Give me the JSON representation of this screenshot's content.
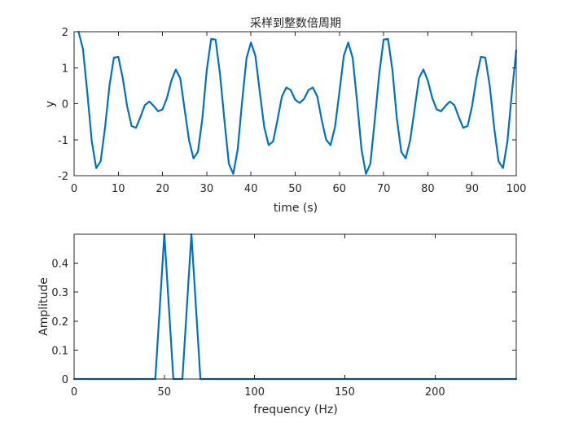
{
  "figure": {
    "background": "#ffffff",
    "axis_color": "#262626"
  },
  "chart_data": [
    {
      "type": "line",
      "title": "采样到整数倍周期",
      "xlabel": "time (s)",
      "ylabel": "y",
      "xlim": [
        0,
        100
      ],
      "ylim": [
        -2,
        2
      ],
      "xticks": [
        0,
        10,
        20,
        30,
        40,
        50,
        60,
        70,
        80,
        90,
        100
      ],
      "yticks": [
        -2,
        -1,
        0,
        1,
        2
      ],
      "grid": false,
      "legend": "none",
      "series": [
        {
          "color": "#0072BD",
          "x": [
            1,
            2,
            3,
            4,
            5,
            6,
            7,
            8,
            9,
            10,
            11,
            12,
            13,
            14,
            15,
            16,
            17,
            18,
            19,
            20,
            21,
            22,
            23,
            24,
            25,
            26,
            27,
            28,
            29,
            30,
            31,
            32,
            33,
            34,
            35,
            36,
            37,
            38,
            39,
            40,
            41,
            42,
            43,
            44,
            45,
            46,
            47,
            48,
            49,
            50,
            51,
            52,
            53,
            54,
            55,
            56,
            57,
            58,
            59,
            60,
            61,
            62,
            63,
            64,
            65,
            66,
            67,
            68,
            69,
            70,
            71,
            72,
            73,
            74,
            75,
            76,
            77,
            78,
            79,
            80,
            81,
            82,
            83,
            84,
            85,
            86,
            87,
            88,
            89,
            90,
            91,
            92,
            93,
            94,
            95,
            96,
            97,
            98,
            99,
            100
          ],
          "y": [
            2.0,
            1.52,
            0.29,
            -1.05,
            -1.79,
            -1.6,
            -0.66,
            0.5,
            1.28,
            1.3,
            0.71,
            -0.07,
            -0.62,
            -0.67,
            -0.37,
            -0.04,
            0.06,
            -0.06,
            -0.21,
            -0.16,
            0.16,
            0.64,
            0.95,
            0.71,
            -0.16,
            -1.02,
            -1.52,
            -1.34,
            -0.42,
            0.93,
            1.8,
            1.78,
            0.82,
            -0.46,
            -1.67,
            -1.95,
            -1.27,
            0.06,
            1.27,
            1.7,
            1.33,
            0.32,
            -0.65,
            -1.15,
            -1.05,
            -0.45,
            0.2,
            0.45,
            0.38,
            0.11,
            0.02,
            0.13,
            0.38,
            0.45,
            0.2,
            -0.45,
            -1.0,
            -1.15,
            -0.65,
            0.32,
            1.33,
            1.7,
            1.27,
            0.06,
            -1.27,
            -1.95,
            -1.67,
            -0.46,
            0.82,
            1.78,
            1.8,
            0.93,
            -0.42,
            -1.34,
            -1.52,
            -1.02,
            -0.16,
            0.71,
            0.95,
            0.64,
            0.16,
            -0.16,
            -0.21,
            -0.06,
            0.06,
            -0.04,
            -0.37,
            -0.67,
            -0.62,
            -0.07,
            0.71,
            1.3,
            1.28,
            0.5,
            -0.66,
            -1.6,
            -1.79,
            -1.05,
            0.29,
            1.48
          ]
        }
      ]
    },
    {
      "type": "line",
      "title": "",
      "xlabel": "frequency (Hz)",
      "ylabel": "Amplitude",
      "xlim": [
        0,
        245
      ],
      "ylim": [
        0,
        0.5
      ],
      "xticks": [
        0,
        50,
        100,
        150,
        200
      ],
      "yticks": [
        0,
        0.1,
        0.2,
        0.3,
        0.4
      ],
      "grid": false,
      "legend": "none",
      "series": [
        {
          "color": "#0072BD",
          "x": [
            0,
            5,
            10,
            15,
            20,
            25,
            30,
            35,
            40,
            45,
            50,
            55,
            60,
            65,
            70,
            75,
            80,
            85,
            90,
            95,
            100,
            105,
            110,
            115,
            120,
            125,
            130,
            135,
            140,
            145,
            150,
            155,
            160,
            165,
            170,
            175,
            180,
            185,
            190,
            195,
            200,
            205,
            210,
            215,
            220,
            225,
            230,
            235,
            240,
            245
          ],
          "y": [
            0,
            0,
            0,
            0,
            0,
            0,
            0,
            0,
            0,
            0,
            0.5,
            0,
            0,
            0.5,
            0,
            0,
            0,
            0,
            0,
            0,
            0,
            0,
            0,
            0,
            0,
            0,
            0,
            0,
            0,
            0,
            0,
            0,
            0,
            0,
            0,
            0,
            0,
            0,
            0,
            0,
            0,
            0,
            0,
            0,
            0,
            0,
            0,
            0,
            0,
            0
          ]
        }
      ]
    }
  ]
}
